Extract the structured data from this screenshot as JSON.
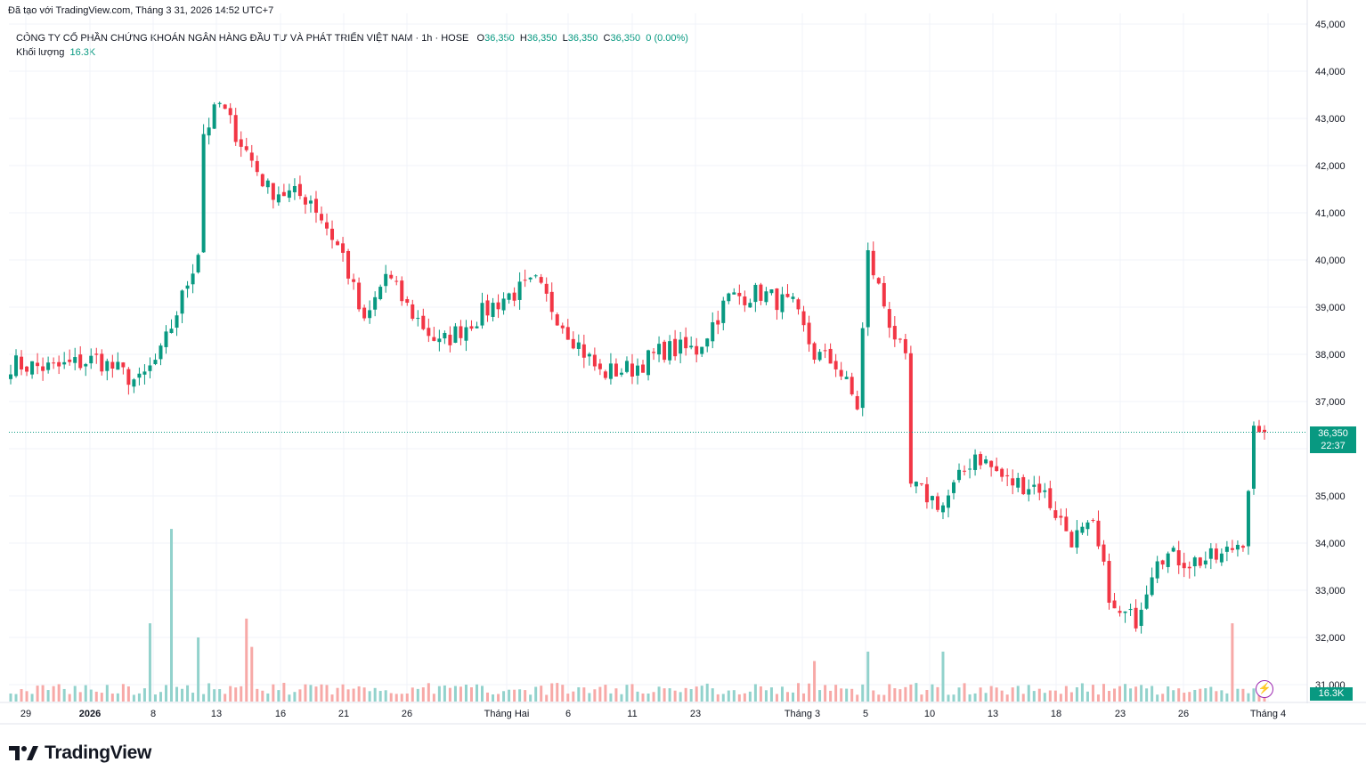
{
  "header": {
    "source_line": "Đã tạo với TradingView.com, Tháng 3 31, 2026 14:52 UTC+7"
  },
  "legend": {
    "symbol_line": "CÔNG TY CỔ PHẦN CHỨNG KHOÁN NGÂN HÀNG ĐẦU TƯ VÀ PHÁT TRIỂN VIỆT NAM · 1h · HOSE",
    "o_label": "O",
    "o_value": "36,350",
    "h_label": "H",
    "h_value": "36,350",
    "l_label": "L",
    "l_value": "36,350",
    "c_label": "C",
    "c_value": "36,350",
    "change": "0 (0.00%)",
    "volume_label": "Khối lượng",
    "volume_value": "16.3K"
  },
  "price_label": {
    "price": "36,350",
    "countdown": "22:37"
  },
  "volume_axis_label": "16.3K",
  "brand": {
    "name": "TradingView"
  },
  "colors": {
    "up": "#089981",
    "down": "#f23645",
    "up_volume": "#92d2cc",
    "down_volume": "#f7a9a7",
    "grid": "#f0f3fa",
    "axis_text": "#131722"
  },
  "chart_data": {
    "type": "candlestick",
    "title": "CÔNG TY CỔ PHẦN CHỨNG KHOÁN NGÂN HÀNG ĐẦU TƯ VÀ PHÁT TRIỂN VIỆT NAM · 1h · HOSE",
    "y_ticks": [
      31000,
      32000,
      33000,
      34000,
      35000,
      36000,
      37000,
      38000,
      39000,
      40000,
      41000,
      42000,
      43000,
      44000,
      45000
    ],
    "y_tick_labels": [
      "31,000",
      "32,000",
      "33,000",
      "34,000",
      "35,000",
      "",
      "37,000",
      "38,000",
      "39,000",
      "40,000",
      "41,000",
      "42,000",
      "43,000",
      "44,000",
      "45,000"
    ],
    "ylim": [
      30700,
      45000
    ],
    "x_tick_labels": [
      "29",
      "2026",
      "8",
      "13",
      "16",
      "21",
      "26",
      "Tháng Hai",
      "6",
      "11",
      "23",
      "Tháng 3",
      "5",
      "10",
      "13",
      "18",
      "23",
      "26",
      "Tháng 4"
    ],
    "last_price": 36350,
    "grid": true,
    "candle_count": 235,
    "waypoints": [
      {
        "i": 0,
        "p": 37800
      },
      {
        "i": 8,
        "p": 37700
      },
      {
        "i": 16,
        "p": 37900
      },
      {
        "i": 24,
        "p": 37400
      },
      {
        "i": 28,
        "p": 38000
      },
      {
        "i": 32,
        "p": 39200
      },
      {
        "i": 35,
        "p": 40200
      },
      {
        "i": 36,
        "p": 42700
      },
      {
        "i": 39,
        "p": 43300
      },
      {
        "i": 42,
        "p": 42700
      },
      {
        "i": 48,
        "p": 41500
      },
      {
        "i": 56,
        "p": 41300
      },
      {
        "i": 62,
        "p": 40100
      },
      {
        "i": 66,
        "p": 38600
      },
      {
        "i": 70,
        "p": 39700
      },
      {
        "i": 74,
        "p": 39000
      },
      {
        "i": 80,
        "p": 38200
      },
      {
        "i": 86,
        "p": 38700
      },
      {
        "i": 92,
        "p": 39200
      },
      {
        "i": 98,
        "p": 39500
      },
      {
        "i": 104,
        "p": 38500
      },
      {
        "i": 110,
        "p": 37600
      },
      {
        "i": 116,
        "p": 37700
      },
      {
        "i": 122,
        "p": 38100
      },
      {
        "i": 128,
        "p": 38100
      },
      {
        "i": 134,
        "p": 39200
      },
      {
        "i": 140,
        "p": 39300
      },
      {
        "i": 146,
        "p": 39000
      },
      {
        "i": 150,
        "p": 38000
      },
      {
        "i": 154,
        "p": 37800
      },
      {
        "i": 158,
        "p": 36900
      },
      {
        "i": 160,
        "p": 40100
      },
      {
        "i": 164,
        "p": 38700
      },
      {
        "i": 167,
        "p": 37800
      },
      {
        "i": 168,
        "p": 35200
      },
      {
        "i": 174,
        "p": 34800
      },
      {
        "i": 180,
        "p": 35900
      },
      {
        "i": 186,
        "p": 35300
      },
      {
        "i": 192,
        "p": 35200
      },
      {
        "i": 198,
        "p": 34100
      },
      {
        "i": 202,
        "p": 34300
      },
      {
        "i": 206,
        "p": 32500
      },
      {
        "i": 210,
        "p": 32400
      },
      {
        "i": 214,
        "p": 33800
      },
      {
        "i": 220,
        "p": 33600
      },
      {
        "i": 226,
        "p": 33700
      },
      {
        "i": 230,
        "p": 34100
      },
      {
        "i": 232,
        "p": 36350
      },
      {
        "i": 234,
        "p": 36350
      }
    ],
    "volume_spikes": [
      {
        "i": 30,
        "v": 34300
      },
      {
        "i": 44,
        "v": 32400
      },
      {
        "i": 26,
        "v": 32300
      },
      {
        "i": 228,
        "v": 32300
      },
      {
        "i": 35,
        "v": 32000
      },
      {
        "i": 45,
        "v": 31800
      },
      {
        "i": 160,
        "v": 31700
      },
      {
        "i": 174,
        "v": 31700
      },
      {
        "i": 150,
        "v": 31500
      }
    ]
  }
}
